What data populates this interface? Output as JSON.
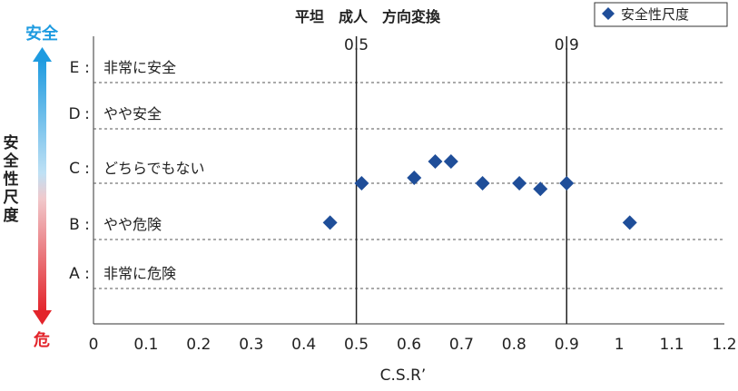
{
  "chart_data": {
    "type": "scatter",
    "title": "平坦　成人　方向変換",
    "xlabel": "C.S.R’",
    "ylabel": "安全性尺度",
    "xlim": [
      0,
      1.2
    ],
    "x_ticks": [
      "0",
      "0.1",
      "0.2",
      "0.3",
      "0.4",
      "0.5",
      "0.6",
      "0.7",
      "0.8",
      "0.9",
      "1",
      "1.1",
      "1.2"
    ],
    "y_categories": [
      {
        "letter": "E",
        "label": "非常に安全",
        "level": 5
      },
      {
        "letter": "D",
        "label": "やや安全",
        "level": 4
      },
      {
        "letter": "C",
        "label": "どちらでもない",
        "level": 3
      },
      {
        "letter": "B",
        "label": "やや危険",
        "level": 2
      },
      {
        "letter": "A",
        "label": "非常に危険",
        "level": 1
      }
    ],
    "reference_lines": [
      {
        "x": 0.5,
        "label": "0.5"
      },
      {
        "x": 0.9,
        "label": "0.9"
      }
    ],
    "legend_position": "top-right",
    "series": [
      {
        "name": "安全性尺度",
        "marker": "diamond",
        "color": "#1f4e99",
        "points": [
          {
            "x": 0.45,
            "y": 2.3
          },
          {
            "x": 0.51,
            "y": 3.0
          },
          {
            "x": 0.61,
            "y": 3.1
          },
          {
            "x": 0.65,
            "y": 3.4
          },
          {
            "x": 0.68,
            "y": 3.4
          },
          {
            "x": 0.74,
            "y": 3.0
          },
          {
            "x": 0.81,
            "y": 3.0
          },
          {
            "x": 0.85,
            "y": 2.9
          },
          {
            "x": 0.9,
            "y": 3.0
          },
          {
            "x": 1.02,
            "y": 2.3
          }
        ]
      }
    ],
    "scale_top_label": "安全",
    "scale_bottom_label": "危",
    "colors": {
      "safe": "#1e9be0",
      "danger": "#e3242b"
    }
  }
}
